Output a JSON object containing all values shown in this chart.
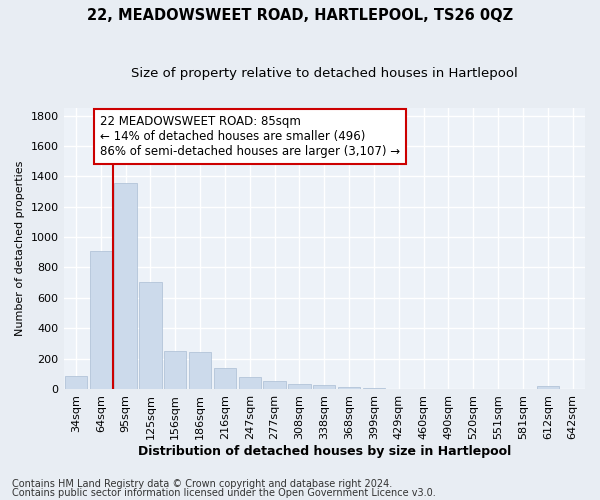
{
  "title": "22, MEADOWSWEET ROAD, HARTLEPOOL, TS26 0QZ",
  "subtitle": "Size of property relative to detached houses in Hartlepool",
  "xlabel": "Distribution of detached houses by size in Hartlepool",
  "ylabel": "Number of detached properties",
  "categories": [
    "34sqm",
    "64sqm",
    "95sqm",
    "125sqm",
    "156sqm",
    "186sqm",
    "216sqm",
    "247sqm",
    "277sqm",
    "308sqm",
    "338sqm",
    "368sqm",
    "399sqm",
    "429sqm",
    "460sqm",
    "490sqm",
    "520sqm",
    "551sqm",
    "581sqm",
    "612sqm",
    "642sqm"
  ],
  "values": [
    85,
    910,
    1355,
    705,
    250,
    245,
    140,
    80,
    55,
    35,
    25,
    15,
    5,
    0,
    0,
    0,
    0,
    0,
    0,
    20,
    0
  ],
  "bar_color": "#ccdaeb",
  "bar_edgecolor": "#aabdd4",
  "redline_x": 1.5,
  "annotation_title": "22 MEADOWSWEET ROAD: 85sqm",
  "annotation_line1": "← 14% of detached houses are smaller (496)",
  "annotation_line2": "86% of semi-detached houses are larger (3,107) →",
  "annotation_box_facecolor": "#ffffff",
  "annotation_box_edgecolor": "#cc0000",
  "redline_color": "#cc0000",
  "ylim": [
    0,
    1850
  ],
  "yticks": [
    0,
    200,
    400,
    600,
    800,
    1000,
    1200,
    1400,
    1600,
    1800
  ],
  "footnote1": "Contains HM Land Registry data © Crown copyright and database right 2024.",
  "footnote2": "Contains public sector information licensed under the Open Government Licence v3.0.",
  "bg_color": "#e8edf3",
  "plot_bg_color": "#edf2f8",
  "grid_color": "#ffffff",
  "title_fontsize": 10.5,
  "subtitle_fontsize": 9.5,
  "xlabel_fontsize": 9,
  "ylabel_fontsize": 8,
  "tick_fontsize": 8,
  "annotation_fontsize": 8.5,
  "footnote_fontsize": 7
}
